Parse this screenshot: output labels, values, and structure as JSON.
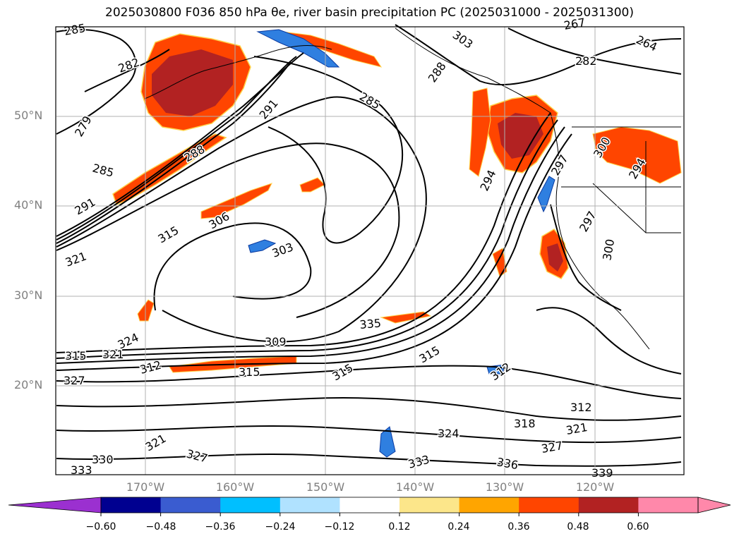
{
  "title": "2025030800 F036 850 hPa θe, river basin precipitation PC (2025031000 - 2025031300)",
  "map": {
    "lat_labels": [
      "50°N",
      "40°N",
      "30°N",
      "20°N"
    ],
    "lon_labels": [
      "170°W",
      "160°W",
      "150°W",
      "140°W",
      "130°W",
      "120°W"
    ],
    "contour_labels": [
      "285",
      "282",
      "279",
      "285",
      "288",
      "291",
      "291",
      "303",
      "306",
      "315",
      "321",
      "303",
      "285",
      "288",
      "267",
      "264",
      "282",
      "297",
      "294",
      "300",
      "294",
      "297",
      "300",
      "309",
      "315",
      "321",
      "324",
      "312",
      "327",
      "315",
      "315",
      "315",
      "312",
      "312",
      "318",
      "321",
      "327",
      "324",
      "321",
      "327",
      "330",
      "333",
      "333",
      "336",
      "339",
      "335"
    ]
  },
  "colorbar": {
    "ticks": [
      "−0.60",
      "−0.48",
      "−0.36",
      "−0.24",
      "−0.12",
      "0.12",
      "0.24",
      "0.36",
      "0.48",
      "0.60"
    ],
    "colors": [
      "#9b30d0",
      "#000090",
      "#3a5cd0",
      "#00bfff",
      "#b0e2ff",
      "#ffffff",
      "#fce68a",
      "#ffa500",
      "#ff4500",
      "#b22222",
      "#ff88aa",
      "#ff88aa"
    ]
  },
  "colors": {
    "contour": "#000000",
    "grid": "#b0b0b0",
    "precip_positive": "#ff4500",
    "precip_strong": "#b22222",
    "precip_negative": "#2f7fe0"
  }
}
